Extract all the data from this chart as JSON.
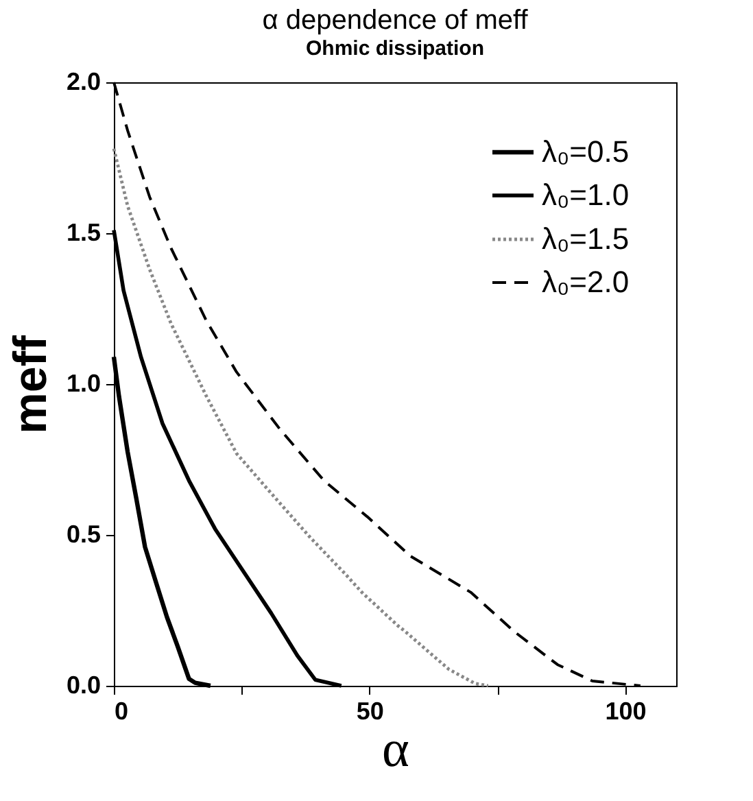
{
  "chart_data": {
    "type": "line",
    "title": "α dependence of meff",
    "subtitle": "Ohmic dissipation",
    "xlabel": "α",
    "ylabel": "meff",
    "xlim": [
      0,
      110
    ],
    "xticks": [
      0,
      {
        "value": 25,
        "label": null
      },
      50,
      {
        "value": 75,
        "label": null
      },
      100
    ],
    "ylim": [
      0,
      2
    ],
    "yticks": [
      {
        "value": 0,
        "label": "0.0"
      },
      0.5,
      {
        "value": 1,
        "label": "1.0"
      },
      1.5,
      {
        "value": 2,
        "label": "2.0"
      }
    ],
    "legend": "top right",
    "grid": false,
    "marker": "none",
    "series": [
      {
        "name": "λ₀=0.5",
        "color": "#000000",
        "line_style": "solid",
        "x": [
          0,
          1.0,
          2.7,
          4.4,
          6.1,
          8.3,
          10.4,
          12.5,
          14.7,
          15.9,
          18.9
        ],
        "values": [
          1.09,
          0.96,
          0.775,
          0.62,
          0.46,
          0.34,
          0.227,
          0.13,
          0.023,
          0.01,
          0
        ]
      },
      {
        "name": "λ₀=1.0",
        "color": "#000000",
        "line_style": "solid",
        "x": [
          0,
          1.9,
          5.3,
          9.5,
          14.7,
          19.8,
          25.7,
          30.8,
          35.9,
          39.4,
          44.5
        ],
        "values": [
          1.51,
          1.31,
          1.09,
          0.87,
          0.68,
          0.52,
          0.37,
          0.24,
          0.1,
          0.02,
          0
        ]
      },
      {
        "name": "λ₀=1.5",
        "color": "#888888",
        "line_style": "dotted",
        "x": [
          0,
          2.7,
          7.0,
          11.2,
          18.1,
          24.0,
          31.7,
          38.5,
          45.3,
          48.5,
          55.5,
          57.0,
          65.5,
          70.6,
          73.2
        ],
        "values": [
          1.78,
          1.59,
          1.38,
          1.2,
          0.96,
          0.77,
          0.62,
          0.49,
          0.37,
          0.31,
          0.2,
          0.18,
          0.055,
          0.008,
          0
        ]
      },
      {
        "name": "λ₀=2.0",
        "color": "#000000",
        "line_style": "dashed",
        "x": [
          0,
          2.7,
          7.0,
          11.2,
          18.1,
          24.0,
          32.5,
          41.1,
          49.6,
          58.0,
          69.8,
          78.3,
          86.8,
          93.6,
          103
        ],
        "values": [
          2.0,
          1.84,
          1.62,
          1.45,
          1.21,
          1.04,
          0.85,
          0.68,
          0.56,
          0.43,
          0.31,
          0.18,
          0.07,
          0.016,
          0
        ]
      }
    ]
  }
}
